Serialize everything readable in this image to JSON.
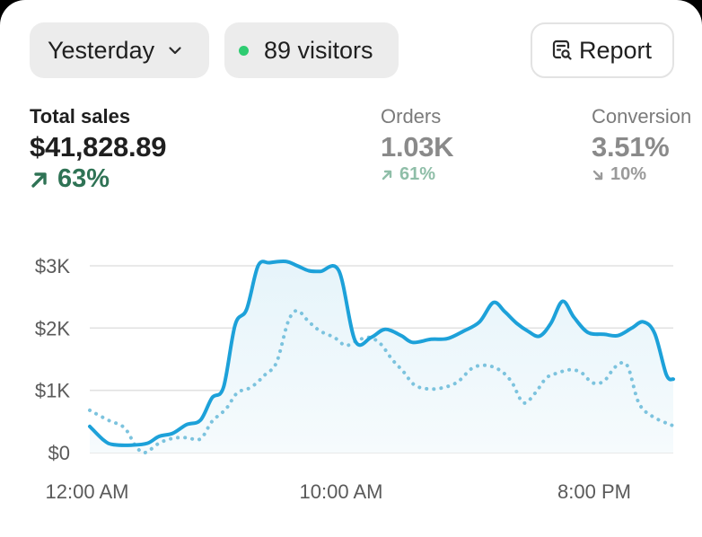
{
  "filters": {
    "period_label": "Yesterday",
    "visitors_label": "89 visitors",
    "report_label": "Report"
  },
  "metrics": {
    "total_sales": {
      "label": "Total sales",
      "value": "$41,828.89",
      "change": "63%",
      "direction": "up"
    },
    "orders": {
      "label": "Orders",
      "value": "1.03K",
      "change": "61%",
      "direction": "up"
    },
    "conversion": {
      "label": "Conversion",
      "value": "3.51%",
      "change": "10%",
      "direction": "down"
    }
  },
  "icons": {
    "period": "chevron-down-icon",
    "visitors": "status-dot-icon",
    "report": "report-search-icon"
  },
  "colors": {
    "current_line": "#1da1d9",
    "comparison_line": "#7cc3de",
    "positive_primary": "#2f7355",
    "positive_muted": "#8fbea8",
    "live_dot": "#2ecc71"
  },
  "chart_data": {
    "type": "line",
    "y_tick_labels": [
      "$0",
      "$1K",
      "$2K",
      "$3K"
    ],
    "y_ticks": [
      0,
      1000,
      2000,
      3000
    ],
    "ylim": [
      0,
      3000
    ],
    "x_tick_labels": [
      "12:00 AM",
      "10:00 AM",
      "8:00 PM"
    ],
    "x_tick_positions": [
      1,
      11,
      21
    ],
    "xlim": [
      0,
      23
    ],
    "grid": true,
    "series": [
      {
        "style": "solid",
        "values": [
          [
            0.0,
            420
          ],
          [
            0.6,
            200
          ],
          [
            1.0,
            130
          ],
          [
            1.8,
            120
          ],
          [
            2.5,
            150
          ],
          [
            3.0,
            260
          ],
          [
            3.6,
            310
          ],
          [
            4.2,
            450
          ],
          [
            4.8,
            520
          ],
          [
            5.3,
            880
          ],
          [
            5.8,
            1050
          ],
          [
            6.3,
            2050
          ],
          [
            6.8,
            2300
          ],
          [
            7.3,
            3000
          ],
          [
            7.8,
            3050
          ],
          [
            8.5,
            3070
          ],
          [
            9.0,
            3000
          ],
          [
            9.5,
            2920
          ],
          [
            10.0,
            2910
          ],
          [
            10.8,
            2920
          ],
          [
            11.5,
            1800
          ],
          [
            12.2,
            1850
          ],
          [
            12.8,
            1980
          ],
          [
            13.5,
            1880
          ],
          [
            14.0,
            1770
          ],
          [
            14.8,
            1820
          ],
          [
            15.5,
            1830
          ],
          [
            16.2,
            1950
          ],
          [
            16.9,
            2100
          ],
          [
            17.5,
            2410
          ],
          [
            18.0,
            2260
          ],
          [
            18.5,
            2080
          ],
          [
            19.0,
            1950
          ],
          [
            19.5,
            1870
          ],
          [
            20.0,
            2080
          ],
          [
            20.5,
            2430
          ],
          [
            21.0,
            2170
          ],
          [
            21.6,
            1930
          ],
          [
            22.3,
            1900
          ],
          [
            22.9,
            1880
          ],
          [
            23.5,
            2000
          ],
          [
            24.0,
            2100
          ],
          [
            24.5,
            1910
          ],
          [
            25.0,
            1250
          ],
          [
            25.3,
            1180
          ]
        ]
      },
      {
        "style": "dotted",
        "values": [
          [
            0.0,
            680
          ],
          [
            0.8,
            520
          ],
          [
            1.5,
            400
          ],
          [
            2.0,
            100
          ],
          [
            2.4,
            0
          ],
          [
            3.0,
            150
          ],
          [
            3.6,
            230
          ],
          [
            4.2,
            240
          ],
          [
            4.8,
            220
          ],
          [
            5.3,
            500
          ],
          [
            5.9,
            700
          ],
          [
            6.4,
            960
          ],
          [
            7.0,
            1050
          ],
          [
            7.6,
            1250
          ],
          [
            8.1,
            1450
          ],
          [
            8.6,
            2100
          ],
          [
            9.0,
            2280
          ],
          [
            9.5,
            2100
          ],
          [
            10.0,
            1950
          ],
          [
            10.6,
            1850
          ],
          [
            11.1,
            1720
          ],
          [
            11.6,
            1800
          ],
          [
            12.1,
            1850
          ],
          [
            12.6,
            1750
          ],
          [
            13.1,
            1500
          ],
          [
            13.6,
            1300
          ],
          [
            14.1,
            1080
          ],
          [
            14.8,
            1020
          ],
          [
            15.5,
            1060
          ],
          [
            16.0,
            1150
          ],
          [
            16.6,
            1360
          ],
          [
            17.2,
            1400
          ],
          [
            17.8,
            1320
          ],
          [
            18.3,
            1130
          ],
          [
            18.8,
            800
          ],
          [
            19.3,
            950
          ],
          [
            19.8,
            1200
          ],
          [
            20.3,
            1280
          ],
          [
            20.8,
            1330
          ],
          [
            21.3,
            1290
          ],
          [
            21.8,
            1120
          ],
          [
            22.3,
            1150
          ],
          [
            22.8,
            1380
          ],
          [
            23.3,
            1400
          ],
          [
            23.8,
            800
          ],
          [
            24.4,
            580
          ],
          [
            25.3,
            430
          ]
        ]
      }
    ]
  }
}
